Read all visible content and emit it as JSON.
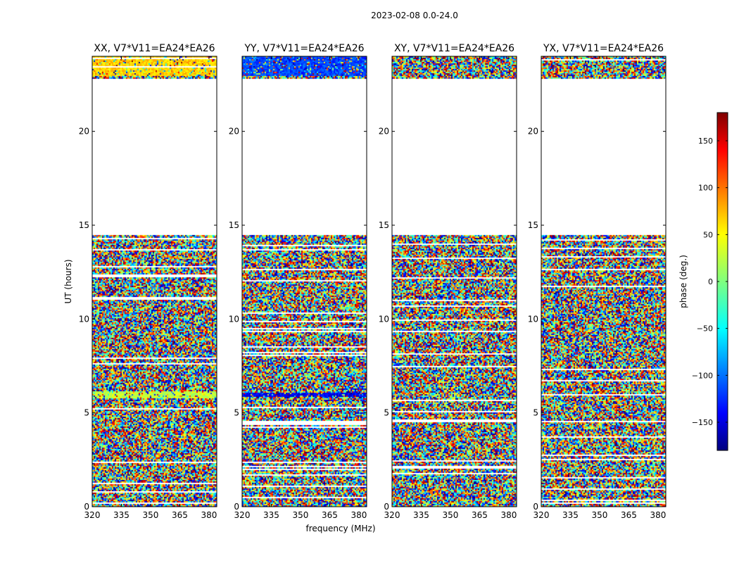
{
  "figure": {
    "suptitle": "2023-02-08 0.0-24.0",
    "xlabel": "frequency (MHz)",
    "ylabel": "UT (hours)",
    "colorbar_label": "phase (deg.)"
  },
  "chart_data": [
    {
      "type": "heatmap",
      "title": "XX, V7*V11=EA24*EA26",
      "x_ticks": [
        "320",
        "335",
        "350",
        "365",
        "380"
      ],
      "y_ticks": [
        "0",
        "5",
        "10",
        "15",
        "20"
      ],
      "xlim": [
        320,
        384
      ],
      "ylim": [
        0,
        24
      ],
      "data_gaps_hours": [
        [
          14.55,
          22.85
        ]
      ],
      "dominant_phase_deg": {
        "23.0-24.0": 60,
        "5.8-6.2": 25
      },
      "colormap": "jet"
    },
    {
      "type": "heatmap",
      "title": "YY, V7*V11=EA24*EA26",
      "x_ticks": [
        "320",
        "335",
        "350",
        "365",
        "380"
      ],
      "y_ticks": [
        "0",
        "5",
        "10",
        "15",
        "20"
      ],
      "xlim": [
        320,
        384
      ],
      "ylim": [
        0,
        24
      ],
      "data_gaps_hours": [
        [
          14.55,
          22.85
        ]
      ],
      "dominant_phase_deg": {
        "23.0-24.0": -110,
        "5.9-6.1": -140
      },
      "colormap": "jet"
    },
    {
      "type": "heatmap",
      "title": "XY, V7*V11=EA24*EA26",
      "x_ticks": [
        "320",
        "335",
        "350",
        "365",
        "380"
      ],
      "y_ticks": [
        "0",
        "5",
        "10",
        "15",
        "20"
      ],
      "xlim": [
        320,
        384
      ],
      "ylim": [
        0,
        24
      ],
      "data_gaps_hours": [
        [
          14.55,
          22.85
        ]
      ],
      "colormap": "jet"
    },
    {
      "type": "heatmap",
      "title": "YX, V7*V11=EA24*EA26",
      "x_ticks": [
        "320",
        "335",
        "350",
        "365",
        "380"
      ],
      "y_ticks": [
        "0",
        "5",
        "10",
        "15",
        "20"
      ],
      "xlim": [
        320,
        384
      ],
      "ylim": [
        0,
        24
      ],
      "data_gaps_hours": [
        [
          14.55,
          22.85
        ]
      ],
      "colormap": "jet"
    }
  ],
  "colorbar": {
    "range": [
      -180,
      180
    ],
    "ticks": [
      "150",
      "100",
      "50",
      "0",
      "−50",
      "−100",
      "−150"
    ],
    "tick_values": [
      150,
      100,
      50,
      0,
      -50,
      -100,
      -150
    ],
    "colormap": "jet"
  }
}
